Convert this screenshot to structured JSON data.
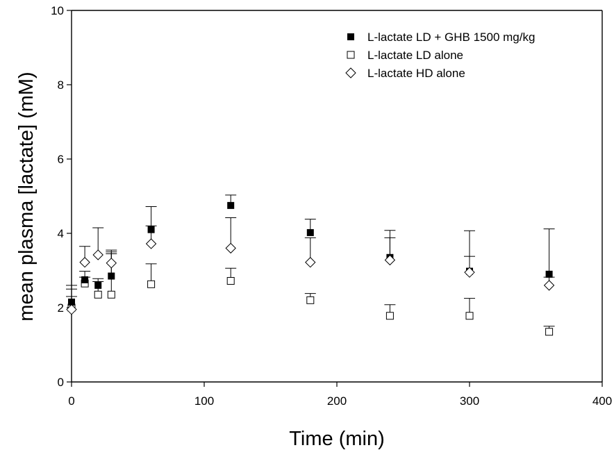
{
  "chart_data": {
    "type": "scatter",
    "title": "",
    "xlabel": "Time (min)",
    "ylabel": "mean plasma [lactate] (mM)",
    "xlim": [
      0,
      400
    ],
    "ylim": [
      0,
      10
    ],
    "xticks": [
      0,
      100,
      200,
      300,
      400
    ],
    "yticks": [
      0,
      2,
      4,
      6,
      8,
      10
    ],
    "xtick_labels": [
      "0",
      "100",
      "200",
      "300",
      "400"
    ],
    "ytick_labels": [
      "0",
      "2",
      "4",
      "6",
      "8",
      "10"
    ],
    "grid": false,
    "legend_position": "top-right",
    "series": [
      {
        "name": "L-lactate LD + GHB 1500 mg/kg",
        "marker": "filled-square",
        "color": "#000000",
        "x": [
          0,
          10,
          20,
          30,
          60,
          120,
          180,
          240,
          300,
          360
        ],
        "y": [
          2.15,
          2.75,
          2.6,
          2.85,
          4.1,
          4.75,
          4.02,
          3.35,
          2.98,
          2.9
        ],
        "error_upper": [
          2.3,
          2.98,
          2.78,
          3.55,
          4.72,
          5.03,
          4.38,
          4.08,
          4.07,
          4.12
        ]
      },
      {
        "name": "L-lactate LD alone",
        "marker": "open-square",
        "color": "#000000",
        "x": [
          0,
          10,
          20,
          30,
          60,
          120,
          180,
          240,
          300,
          360
        ],
        "y": [
          2.0,
          2.65,
          2.35,
          2.35,
          2.63,
          2.72,
          2.2,
          1.78,
          1.78,
          1.35
        ],
        "error_upper": [
          2.6,
          2.82,
          2.7,
          3.45,
          3.18,
          3.06,
          2.38,
          2.08,
          2.25,
          1.5
        ]
      },
      {
        "name": "L-lactate HD alone",
        "marker": "open-diamond",
        "color": "#000000",
        "x": [
          0,
          10,
          20,
          30,
          60,
          120,
          180,
          240,
          300,
          360
        ],
        "y": [
          1.95,
          3.22,
          3.42,
          3.2,
          3.72,
          3.6,
          3.22,
          3.28,
          2.95,
          2.6
        ],
        "error_upper": [
          2.5,
          3.65,
          4.15,
          3.5,
          4.2,
          4.42,
          3.88,
          3.88,
          3.38,
          2.82
        ]
      }
    ]
  }
}
